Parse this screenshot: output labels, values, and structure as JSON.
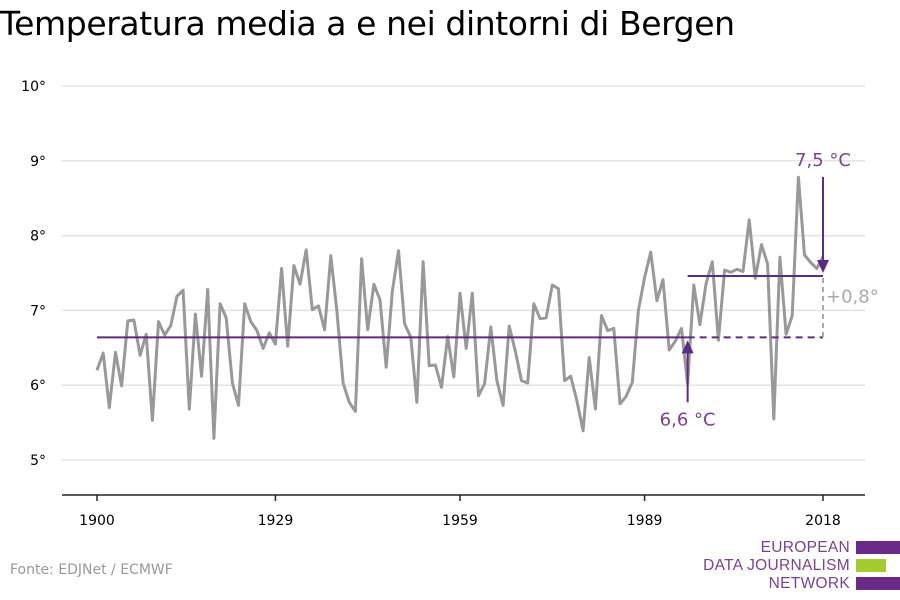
{
  "title": "Temperatura media a e nei dintorni di Bergen",
  "source": "Fonte: EDJNet / ECMWF",
  "logo": {
    "lines": [
      "EUROPEAN",
      "DATA JOURNALISM",
      "NETWORK"
    ],
    "colors": {
      "text": "#7b3f98",
      "bar_purple": "#6a2a8a",
      "bar_green": "#a4cc32"
    }
  },
  "chart_data": {
    "type": "line",
    "title": "Temperatura media a e nei dintorni di Bergen",
    "xlabel": "",
    "ylabel": "",
    "xlim": [
      1894,
      2028
    ],
    "ylim": [
      4.5,
      10.2
    ],
    "x_ticks": [
      1900,
      1929,
      1959,
      1989,
      2018
    ],
    "x_tick_labels": [
      "1900",
      "1929",
      "1959",
      "1989",
      "2018"
    ],
    "y_ticks": [
      5,
      6,
      7,
      8,
      9,
      10
    ],
    "y_tick_labels": [
      "5°",
      "6°",
      "7°",
      "8°",
      "9°",
      "10°"
    ],
    "grid": "horizontal",
    "series": [
      {
        "color": "#999999",
        "x": [
          1900,
          1901,
          1902,
          1903,
          1904,
          1905,
          1906,
          1907,
          1908,
          1909,
          1910,
          1911,
          1912,
          1913,
          1914,
          1915,
          1916,
          1917,
          1918,
          1919,
          1920,
          1921,
          1922,
          1923,
          1924,
          1925,
          1926,
          1927,
          1928,
          1929,
          1930,
          1931,
          1932,
          1933,
          1934,
          1935,
          1936,
          1937,
          1938,
          1939,
          1940,
          1941,
          1942,
          1943,
          1944,
          1945,
          1946,
          1947,
          1948,
          1949,
          1950,
          1951,
          1952,
          1953,
          1954,
          1955,
          1956,
          1957,
          1958,
          1959,
          1960,
          1961,
          1962,
          1963,
          1964,
          1965,
          1966,
          1967,
          1968,
          1969,
          1970,
          1971,
          1972,
          1973,
          1974,
          1975,
          1976,
          1977,
          1978,
          1979,
          1980,
          1981,
          1982,
          1983,
          1984,
          1985,
          1986,
          1987,
          1988,
          1989,
          1990,
          1991,
          1992,
          1993,
          1994,
          1995,
          1996,
          1997,
          1998,
          1999,
          2000,
          2001,
          2002,
          2003,
          2004,
          2005,
          2006,
          2007,
          2008,
          2009,
          2010,
          2011,
          2012,
          2013,
          2014,
          2015,
          2016,
          2017,
          2018
        ],
        "values": [
          6.2,
          6.43,
          5.7,
          6.44,
          5.99,
          6.86,
          6.87,
          6.4,
          6.68,
          5.53,
          6.85,
          6.67,
          6.8,
          7.19,
          7.27,
          5.68,
          6.95,
          6.12,
          7.28,
          5.29,
          7.09,
          6.9,
          6.03,
          5.73,
          7.09,
          6.85,
          6.73,
          6.49,
          6.7,
          6.55,
          7.56,
          6.52,
          7.6,
          7.35,
          7.81,
          7.01,
          7.06,
          6.74,
          7.73,
          6.99,
          6.03,
          5.77,
          5.65,
          7.69,
          6.74,
          7.35,
          7.14,
          6.24,
          7.25,
          7.8,
          6.82,
          6.64,
          5.77,
          7.65,
          6.26,
          6.27,
          5.97,
          6.65,
          6.11,
          7.23,
          6.49,
          7.23,
          5.86,
          6.02,
          6.78,
          6.06,
          5.73,
          6.79,
          6.45,
          6.06,
          6.03,
          7.09,
          6.89,
          6.9,
          7.34,
          7.29,
          6.06,
          6.12,
          5.79,
          5.39,
          6.37,
          5.68,
          6.93,
          6.73,
          6.76,
          5.75,
          5.85,
          6.04,
          7.0,
          7.44,
          7.78,
          7.13,
          7.41,
          6.47,
          6.59,
          6.76,
          6.02,
          7.34,
          6.81,
          7.36,
          7.65,
          6.6,
          7.54,
          7.51,
          7.55,
          7.52,
          8.21,
          7.43,
          7.88,
          7.62,
          5.55,
          7.71,
          6.68,
          6.93,
          8.78,
          7.74,
          7.64,
          7.56,
          7.72
        ]
      }
    ],
    "reference_lines": [
      {
        "label": "6,6 °C",
        "value": 6.64,
        "x_from": 1900,
        "x_to": 2018,
        "solid_until": 1996,
        "color": "#5f2a84"
      },
      {
        "label": "7,5 °C",
        "value": 7.46,
        "x_from": 1996,
        "x_to": 2018,
        "color": "#5f2a84"
      }
    ],
    "annotations": [
      {
        "text": "6,6 °C",
        "color": "#7b3f98"
      },
      {
        "text": "7,5 °C",
        "color": "#7b3f98"
      },
      {
        "text": "+0,8°",
        "color": "#aaaaaa"
      }
    ]
  }
}
